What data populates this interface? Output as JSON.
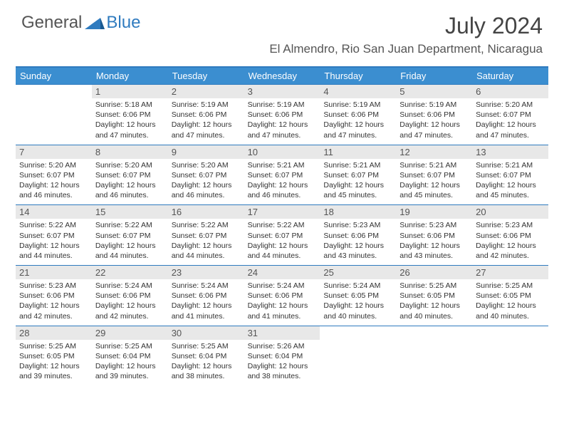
{
  "brand": {
    "part1": "General",
    "part2": "Blue"
  },
  "title": "July 2024",
  "location": "El Almendro, Rio San Juan Department, Nicaragua",
  "colors": {
    "header_bg": "#3b8ed0",
    "accent_line": "#2f7bbf",
    "daynum_bg": "#e8e8e8",
    "text": "#333333",
    "background": "#ffffff"
  },
  "day_names": [
    "Sunday",
    "Monday",
    "Tuesday",
    "Wednesday",
    "Thursday",
    "Friday",
    "Saturday"
  ],
  "weeks": [
    [
      {
        "blank": true
      },
      {
        "n": "1",
        "sunrise": "5:18 AM",
        "sunset": "6:06 PM",
        "daylight": "12 hours and 47 minutes."
      },
      {
        "n": "2",
        "sunrise": "5:19 AM",
        "sunset": "6:06 PM",
        "daylight": "12 hours and 47 minutes."
      },
      {
        "n": "3",
        "sunrise": "5:19 AM",
        "sunset": "6:06 PM",
        "daylight": "12 hours and 47 minutes."
      },
      {
        "n": "4",
        "sunrise": "5:19 AM",
        "sunset": "6:06 PM",
        "daylight": "12 hours and 47 minutes."
      },
      {
        "n": "5",
        "sunrise": "5:19 AM",
        "sunset": "6:06 PM",
        "daylight": "12 hours and 47 minutes."
      },
      {
        "n": "6",
        "sunrise": "5:20 AM",
        "sunset": "6:07 PM",
        "daylight": "12 hours and 47 minutes."
      }
    ],
    [
      {
        "n": "7",
        "sunrise": "5:20 AM",
        "sunset": "6:07 PM",
        "daylight": "12 hours and 46 minutes."
      },
      {
        "n": "8",
        "sunrise": "5:20 AM",
        "sunset": "6:07 PM",
        "daylight": "12 hours and 46 minutes."
      },
      {
        "n": "9",
        "sunrise": "5:20 AM",
        "sunset": "6:07 PM",
        "daylight": "12 hours and 46 minutes."
      },
      {
        "n": "10",
        "sunrise": "5:21 AM",
        "sunset": "6:07 PM",
        "daylight": "12 hours and 46 minutes."
      },
      {
        "n": "11",
        "sunrise": "5:21 AM",
        "sunset": "6:07 PM",
        "daylight": "12 hours and 45 minutes."
      },
      {
        "n": "12",
        "sunrise": "5:21 AM",
        "sunset": "6:07 PM",
        "daylight": "12 hours and 45 minutes."
      },
      {
        "n": "13",
        "sunrise": "5:21 AM",
        "sunset": "6:07 PM",
        "daylight": "12 hours and 45 minutes."
      }
    ],
    [
      {
        "n": "14",
        "sunrise": "5:22 AM",
        "sunset": "6:07 PM",
        "daylight": "12 hours and 44 minutes."
      },
      {
        "n": "15",
        "sunrise": "5:22 AM",
        "sunset": "6:07 PM",
        "daylight": "12 hours and 44 minutes."
      },
      {
        "n": "16",
        "sunrise": "5:22 AM",
        "sunset": "6:07 PM",
        "daylight": "12 hours and 44 minutes."
      },
      {
        "n": "17",
        "sunrise": "5:22 AM",
        "sunset": "6:07 PM",
        "daylight": "12 hours and 44 minutes."
      },
      {
        "n": "18",
        "sunrise": "5:23 AM",
        "sunset": "6:06 PM",
        "daylight": "12 hours and 43 minutes."
      },
      {
        "n": "19",
        "sunrise": "5:23 AM",
        "sunset": "6:06 PM",
        "daylight": "12 hours and 43 minutes."
      },
      {
        "n": "20",
        "sunrise": "5:23 AM",
        "sunset": "6:06 PM",
        "daylight": "12 hours and 42 minutes."
      }
    ],
    [
      {
        "n": "21",
        "sunrise": "5:23 AM",
        "sunset": "6:06 PM",
        "daylight": "12 hours and 42 minutes."
      },
      {
        "n": "22",
        "sunrise": "5:24 AM",
        "sunset": "6:06 PM",
        "daylight": "12 hours and 42 minutes."
      },
      {
        "n": "23",
        "sunrise": "5:24 AM",
        "sunset": "6:06 PM",
        "daylight": "12 hours and 41 minutes."
      },
      {
        "n": "24",
        "sunrise": "5:24 AM",
        "sunset": "6:06 PM",
        "daylight": "12 hours and 41 minutes."
      },
      {
        "n": "25",
        "sunrise": "5:24 AM",
        "sunset": "6:05 PM",
        "daylight": "12 hours and 40 minutes."
      },
      {
        "n": "26",
        "sunrise": "5:25 AM",
        "sunset": "6:05 PM",
        "daylight": "12 hours and 40 minutes."
      },
      {
        "n": "27",
        "sunrise": "5:25 AM",
        "sunset": "6:05 PM",
        "daylight": "12 hours and 40 minutes."
      }
    ],
    [
      {
        "n": "28",
        "sunrise": "5:25 AM",
        "sunset": "6:05 PM",
        "daylight": "12 hours and 39 minutes."
      },
      {
        "n": "29",
        "sunrise": "5:25 AM",
        "sunset": "6:04 PM",
        "daylight": "12 hours and 39 minutes."
      },
      {
        "n": "30",
        "sunrise": "5:25 AM",
        "sunset": "6:04 PM",
        "daylight": "12 hours and 38 minutes."
      },
      {
        "n": "31",
        "sunrise": "5:26 AM",
        "sunset": "6:04 PM",
        "daylight": "12 hours and 38 minutes."
      },
      {
        "blank": true
      },
      {
        "blank": true
      },
      {
        "blank": true
      }
    ]
  ],
  "labels": {
    "sunrise_prefix": "Sunrise: ",
    "sunset_prefix": "Sunset: ",
    "daylight_prefix": "Daylight: "
  }
}
